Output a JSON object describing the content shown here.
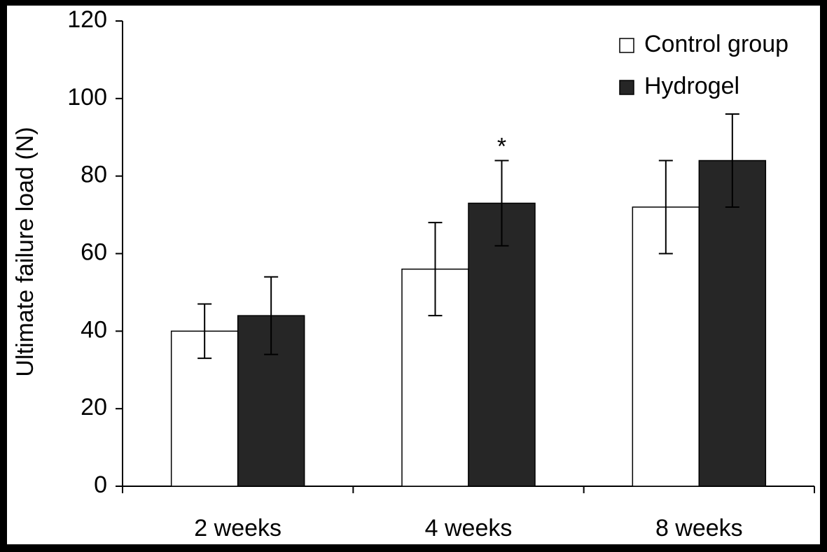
{
  "chart_data": {
    "type": "bar",
    "y_label": "Ultimate failure load (N)",
    "categories": [
      "2 weeks",
      "4 weeks",
      "8 weeks"
    ],
    "series": [
      {
        "name": "Control group",
        "color": "#ffffff",
        "values": [
          40,
          56,
          72
        ],
        "errors": [
          7,
          12,
          12
        ]
      },
      {
        "name": "Hydrogel",
        "color": "#262626",
        "values": [
          44,
          73,
          84
        ],
        "errors": [
          10,
          11,
          12
        ]
      }
    ],
    "annotations": [
      {
        "text": "*",
        "series": 1,
        "category": 1
      }
    ],
    "ylim": [
      0,
      120
    ],
    "yticks": [
      0,
      20,
      40,
      60,
      80,
      100,
      120
    ],
    "grid": false,
    "legend": "upper right"
  }
}
